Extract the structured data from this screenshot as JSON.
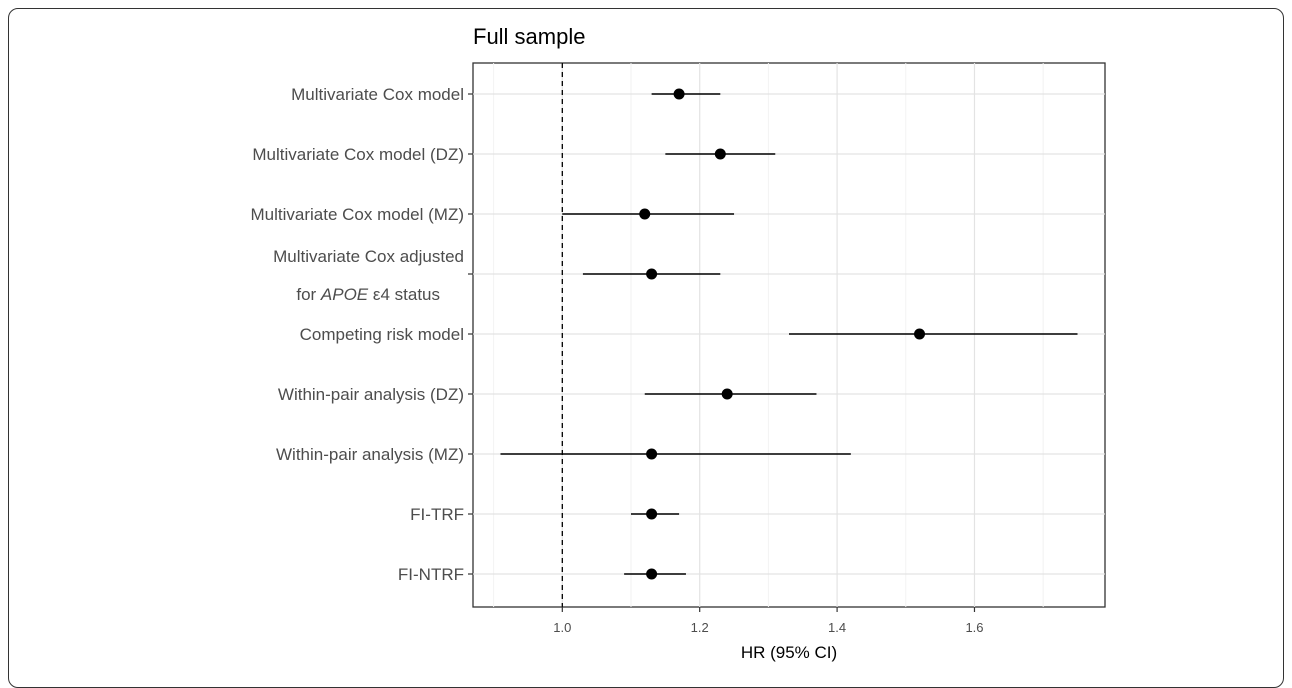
{
  "chart_data": {
    "type": "forest",
    "title": "Full sample",
    "xlabel": "HR (95% CI)",
    "xlim": [
      0.87,
      1.79
    ],
    "xticks": [
      1.0,
      1.2,
      1.4,
      1.6
    ],
    "xtick_labels": [
      "1.0",
      "1.2",
      "1.4",
      "1.6"
    ],
    "reference_line": 1.0,
    "grid": true,
    "categories": [
      {
        "label": "Multivariate Cox model",
        "hr": 1.17,
        "lo": 1.13,
        "hi": 1.23
      },
      {
        "label": "Multivariate Cox model (DZ)",
        "hr": 1.23,
        "lo": 1.15,
        "hi": 1.31
      },
      {
        "label": "Multivariate Cox model (MZ)",
        "hr": 1.12,
        "lo": 1.0,
        "hi": 1.25
      },
      {
        "label_line1": "Multivariate Cox adjusted",
        "label_line2_prefix": "for ",
        "label_line2_italic": "APOE",
        "label_line2_suffix": " ε4 status",
        "hr": 1.13,
        "lo": 1.03,
        "hi": 1.23
      },
      {
        "label": "Competing risk model",
        "hr": 1.52,
        "lo": 1.33,
        "hi": 1.75
      },
      {
        "label": "Within-pair analysis (DZ)",
        "hr": 1.24,
        "lo": 1.12,
        "hi": 1.37
      },
      {
        "label": "Within-pair analysis (MZ)",
        "hr": 1.13,
        "lo": 0.91,
        "hi": 1.42
      },
      {
        "label": "FI-TRF",
        "hr": 1.13,
        "lo": 1.1,
        "hi": 1.17
      },
      {
        "label": "FI-NTRF",
        "hr": 1.13,
        "lo": 1.09,
        "hi": 1.18
      }
    ]
  }
}
